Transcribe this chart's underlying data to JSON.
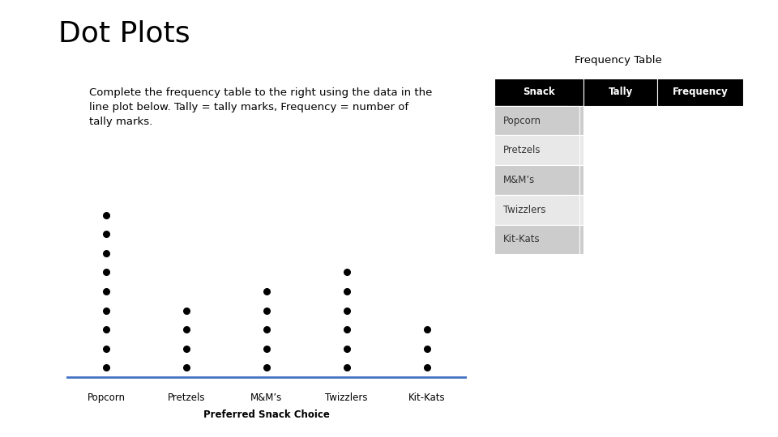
{
  "title": "Dot Plots",
  "subtitle_lines": [
    "Complete the frequency table to the right using the data in the",
    "line plot below. Tally = tally marks, Frequency = number of",
    "tally marks."
  ],
  "dot_plot": {
    "categories": [
      "Popcorn",
      "Pretzels",
      "M&M’s",
      "Twizzlers",
      "Kit-Kats"
    ],
    "counts": [
      9,
      4,
      5,
      6,
      3
    ],
    "xlabel": "Preferred Snack Choice",
    "baseline_color": "#4472C4"
  },
  "table": {
    "title": "Frequency Table",
    "headers": [
      "Snack",
      "Tally",
      "Frequency"
    ],
    "rows": [
      "Popcorn",
      "Pretzels",
      "M&M’s",
      "Twizzlers",
      "Kit-Kats"
    ],
    "header_bg": "#000000",
    "header_fg": "#ffffff",
    "row_bg_1": "#cccccc",
    "row_bg_2": "#e8e8e8"
  },
  "bg_color": "#ffffff",
  "title_fontsize": 26,
  "subtitle_fontsize": 9.5,
  "dot_color": "#000000",
  "dot_size": 30
}
